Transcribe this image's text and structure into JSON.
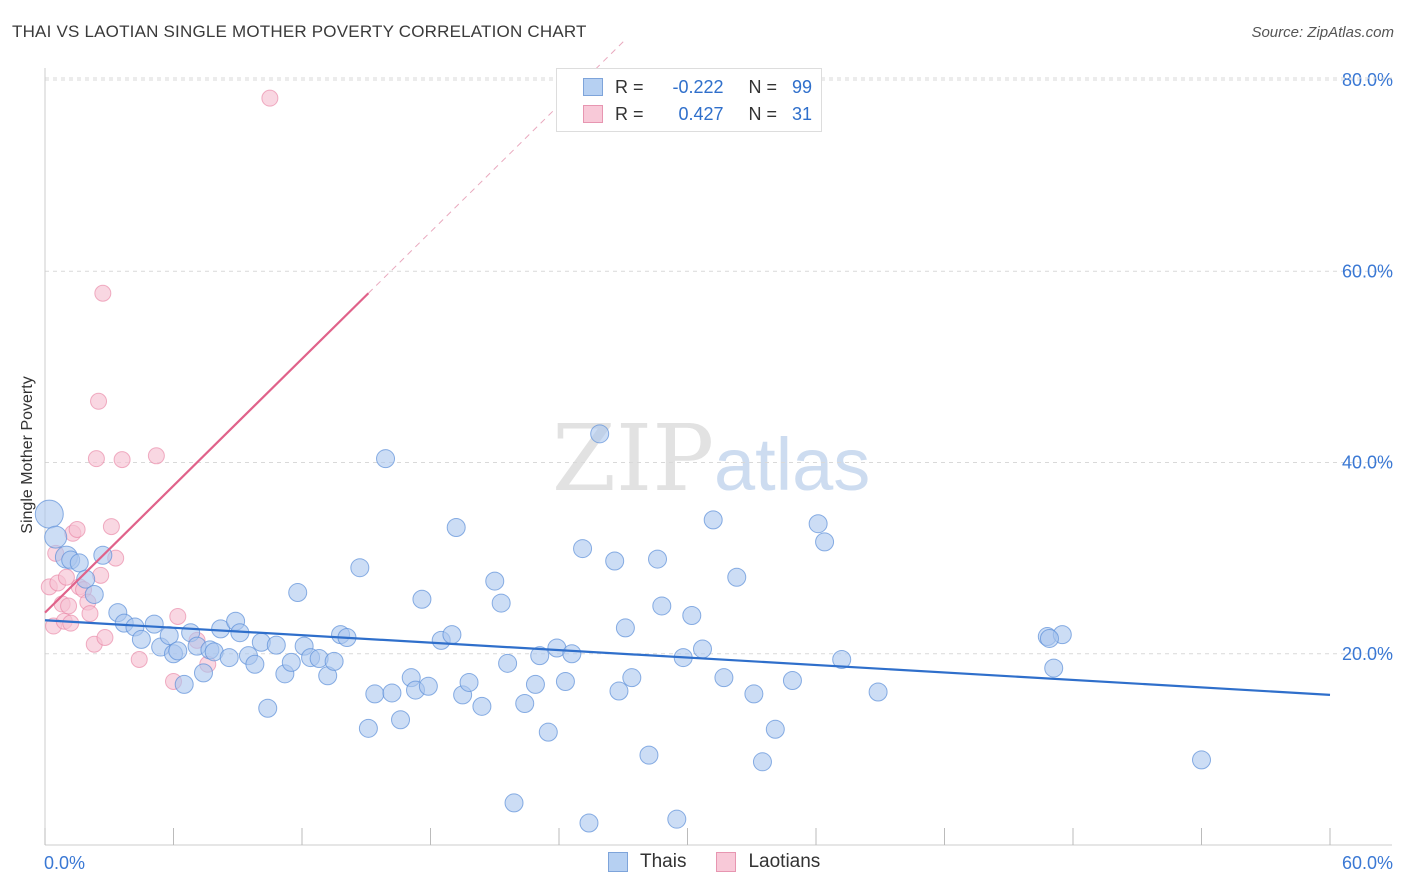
{
  "title": "THAI VS LAOTIAN SINGLE MOTHER POVERTY CORRELATION CHART",
  "source": "Source: ZipAtlas.com",
  "watermark": {
    "zip": "ZIP",
    "atlas": "atlas"
  },
  "legend": {
    "rows": [
      {
        "r_label": "R =",
        "r_value": "-0.222",
        "n_label": "N =",
        "n_value": "99"
      },
      {
        "r_label": "R =",
        "r_value": "0.427",
        "n_label": "N =",
        "n_value": "31"
      }
    ]
  },
  "chart_data": {
    "type": "scatter",
    "xlabel": "",
    "ylabel": "Single Mother Poverty",
    "xlim": [
      0,
      60
    ],
    "ylim": [
      0,
      80
    ],
    "x_tick_labels": [
      "0.0%",
      "60.0%"
    ],
    "y_tick_labels": [
      "20.0%",
      "40.0%",
      "60.0%",
      "80.0%"
    ],
    "y_ticks": [
      20,
      40,
      60,
      80
    ],
    "grid": true,
    "colors": {
      "thais": "#5b8fd9",
      "thais_fill": "#aac7ee",
      "laotians": "#e87fa0",
      "laotians_fill": "#f6c2d3",
      "thais_line": "#2f6fcb",
      "laotians_line": "#e0628a",
      "tick_label": "#3a78d4"
    },
    "series": [
      {
        "name": "Thais",
        "trend": {
          "x": [
            0,
            60
          ],
          "y": [
            23.5,
            15.7
          ]
        },
        "points": [
          [
            0.2,
            34.6
          ],
          [
            0.5,
            32.2
          ],
          [
            1.0,
            30.1
          ],
          [
            1.2,
            29.8
          ],
          [
            1.6,
            29.5
          ],
          [
            1.9,
            27.8
          ],
          [
            2.3,
            26.2
          ],
          [
            2.7,
            30.3
          ],
          [
            3.4,
            24.3
          ],
          [
            3.7,
            23.2
          ],
          [
            4.2,
            22.8
          ],
          [
            4.5,
            21.5
          ],
          [
            5.1,
            23.1
          ],
          [
            5.4,
            20.7
          ],
          [
            5.8,
            21.9
          ],
          [
            6.0,
            20.0
          ],
          [
            6.2,
            20.3
          ],
          [
            6.5,
            16.8
          ],
          [
            6.8,
            22.2
          ],
          [
            7.1,
            20.8
          ],
          [
            7.4,
            18.0
          ],
          [
            7.7,
            20.4
          ],
          [
            7.9,
            20.2
          ],
          [
            8.2,
            22.6
          ],
          [
            8.6,
            19.6
          ],
          [
            8.9,
            23.4
          ],
          [
            9.1,
            22.2
          ],
          [
            9.5,
            19.8
          ],
          [
            9.8,
            18.9
          ],
          [
            10.1,
            21.2
          ],
          [
            10.4,
            14.3
          ],
          [
            10.8,
            20.9
          ],
          [
            11.2,
            17.9
          ],
          [
            11.5,
            19.1
          ],
          [
            11.8,
            26.4
          ],
          [
            12.1,
            20.8
          ],
          [
            12.4,
            19.6
          ],
          [
            12.8,
            19.5
          ],
          [
            13.2,
            17.7
          ],
          [
            13.5,
            19.2
          ],
          [
            13.8,
            22.0
          ],
          [
            14.1,
            21.7
          ],
          [
            14.7,
            29.0
          ],
          [
            15.1,
            12.2
          ],
          [
            15.4,
            15.8
          ],
          [
            15.9,
            40.4
          ],
          [
            16.2,
            15.9
          ],
          [
            16.6,
            13.1
          ],
          [
            17.1,
            17.5
          ],
          [
            17.3,
            16.2
          ],
          [
            17.6,
            25.7
          ],
          [
            17.9,
            16.6
          ],
          [
            18.5,
            21.4
          ],
          [
            19.0,
            22.0
          ],
          [
            19.2,
            33.2
          ],
          [
            19.5,
            15.7
          ],
          [
            19.8,
            17.0
          ],
          [
            20.4,
            14.5
          ],
          [
            21.0,
            27.6
          ],
          [
            21.3,
            25.3
          ],
          [
            21.6,
            19.0
          ],
          [
            21.9,
            4.4
          ],
          [
            22.4,
            14.8
          ],
          [
            22.9,
            16.8
          ],
          [
            23.1,
            19.8
          ],
          [
            23.5,
            11.8
          ],
          [
            23.9,
            20.6
          ],
          [
            24.3,
            17.1
          ],
          [
            24.6,
            20.0
          ],
          [
            25.1,
            31.0
          ],
          [
            25.4,
            2.3
          ],
          [
            25.9,
            43.0
          ],
          [
            26.6,
            29.7
          ],
          [
            26.8,
            16.1
          ],
          [
            27.1,
            22.7
          ],
          [
            27.4,
            17.5
          ],
          [
            28.2,
            9.4
          ],
          [
            28.6,
            29.9
          ],
          [
            28.8,
            25.0
          ],
          [
            29.5,
            2.7
          ],
          [
            29.8,
            19.6
          ],
          [
            30.2,
            24.0
          ],
          [
            30.7,
            20.5
          ],
          [
            31.2,
            34.0
          ],
          [
            31.7,
            17.5
          ],
          [
            32.3,
            28.0
          ],
          [
            33.1,
            15.8
          ],
          [
            33.5,
            8.7
          ],
          [
            34.1,
            12.1
          ],
          [
            34.9,
            17.2
          ],
          [
            36.1,
            33.6
          ],
          [
            36.4,
            31.7
          ],
          [
            37.2,
            19.4
          ],
          [
            38.9,
            16.0
          ],
          [
            46.8,
            21.8
          ],
          [
            47.1,
            18.5
          ],
          [
            47.5,
            22.0
          ],
          [
            54.0,
            8.9
          ],
          [
            46.9,
            21.6
          ]
        ]
      },
      {
        "name": "Laotians",
        "trend": {
          "x": [
            0,
            15.1
          ],
          "y": [
            24.3,
            57.7
          ]
        },
        "trend_dashed": {
          "x": [
            15.1,
            27.0
          ],
          "y": [
            57.7,
            84.0
          ]
        },
        "points": [
          [
            0.2,
            27.0
          ],
          [
            0.4,
            22.9
          ],
          [
            0.5,
            30.5
          ],
          [
            0.6,
            27.4
          ],
          [
            0.8,
            25.2
          ],
          [
            0.9,
            23.4
          ],
          [
            1.0,
            28.0
          ],
          [
            1.1,
            25.0
          ],
          [
            1.2,
            23.2
          ],
          [
            1.3,
            32.6
          ],
          [
            1.5,
            33.0
          ],
          [
            1.6,
            27.0
          ],
          [
            1.8,
            26.7
          ],
          [
            2.0,
            25.4
          ],
          [
            2.1,
            24.2
          ],
          [
            2.3,
            21.0
          ],
          [
            2.5,
            46.4
          ],
          [
            2.4,
            40.4
          ],
          [
            2.6,
            28.2
          ],
          [
            2.8,
            21.7
          ],
          [
            2.7,
            57.7
          ],
          [
            3.1,
            33.3
          ],
          [
            3.3,
            30.0
          ],
          [
            3.6,
            40.3
          ],
          [
            4.4,
            19.4
          ],
          [
            5.2,
            40.7
          ],
          [
            6.0,
            17.1
          ],
          [
            6.2,
            23.9
          ],
          [
            7.1,
            21.4
          ],
          [
            7.6,
            18.9
          ],
          [
            10.5,
            78.1
          ]
        ]
      }
    ]
  }
}
